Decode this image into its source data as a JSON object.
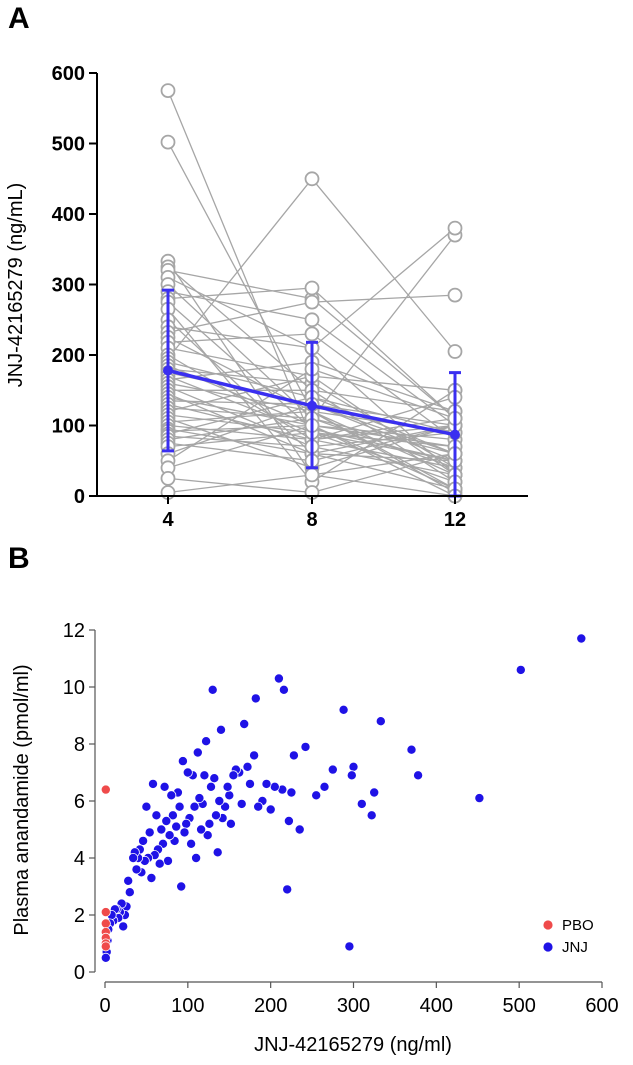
{
  "colors": {
    "subject_line": "#a6a6a6",
    "subject_marker": "#a6a6a6",
    "mean": "#3a2ff0",
    "jnj": "#1f12e6",
    "pbo": "#ef4a4a",
    "axis": "#000000"
  },
  "chart_data": [
    {
      "panel_label": "A",
      "type": "line",
      "description_note": "Individual subject trajectories (grey) with mean ± SD (blue)",
      "xlabel": "",
      "ylabel": "JNJ-42165279 (ng/mL)",
      "x": [
        4,
        8,
        12
      ],
      "x_tick_labels": [
        "4",
        "8",
        "12"
      ],
      "ylim": [
        0,
        600
      ],
      "y_ticks": [
        0,
        100,
        200,
        300,
        400,
        500,
        600
      ],
      "mean_series": {
        "values": [
          178,
          128,
          87
        ],
        "sd_upper": [
          292,
          218,
          175
        ],
        "sd_lower": [
          64,
          40,
          0
        ]
      },
      "subjects": [
        [
          575,
          80,
          40
        ],
        [
          502,
          120,
          10
        ],
        [
          333,
          30,
          60
        ],
        [
          325,
          150,
          120
        ],
        [
          320,
          280,
          110
        ],
        [
          310,
          210,
          30
        ],
        [
          300,
          110,
          370
        ],
        [
          290,
          250,
          100
        ],
        [
          280,
          295,
          110
        ],
        [
          275,
          95,
          50
        ],
        [
          265,
          20,
          150
        ],
        [
          250,
          60,
          100
        ],
        [
          240,
          210,
          380
        ],
        [
          232,
          275,
          285
        ],
        [
          225,
          120,
          90
        ],
        [
          218,
          230,
          80
        ],
        [
          210,
          170,
          150
        ],
        [
          200,
          80,
          140
        ],
        [
          195,
          450,
          205
        ],
        [
          190,
          140,
          60
        ],
        [
          185,
          100,
          70
        ],
        [
          180,
          160,
          40
        ],
        [
          175,
          130,
          100
        ],
        [
          170,
          90,
          50
        ],
        [
          165,
          190,
          120
        ],
        [
          160,
          120,
          30
        ],
        [
          155,
          70,
          90
        ],
        [
          150,
          150,
          20
        ],
        [
          145,
          60,
          10
        ],
        [
          140,
          100,
          80
        ],
        [
          135,
          130,
          60
        ],
        [
          130,
          80,
          100
        ],
        [
          125,
          110,
          40
        ],
        [
          120,
          170,
          30
        ],
        [
          115,
          90,
          70
        ],
        [
          110,
          40,
          100
        ],
        [
          105,
          120,
          5
        ],
        [
          100,
          80,
          110
        ],
        [
          95,
          60,
          50
        ],
        [
          92,
          100,
          0
        ],
        [
          88,
          140,
          90
        ],
        [
          85,
          70,
          30
        ],
        [
          80,
          110,
          60
        ],
        [
          75,
          50,
          100
        ],
        [
          70,
          90,
          20
        ],
        [
          60,
          130,
          50
        ],
        [
          50,
          180,
          110
        ],
        [
          40,
          100,
          10
        ],
        [
          25,
          5,
          60
        ],
        [
          5,
          30,
          0
        ]
      ]
    },
    {
      "panel_label": "B",
      "type": "scatter",
      "xlabel": "JNJ-42165279 (ng/ml)",
      "ylabel": "Plasma anandamide (pmol/ml)",
      "xlim": [
        0,
        600
      ],
      "ylim": [
        0,
        12
      ],
      "x_ticks": [
        0,
        100,
        200,
        300,
        400,
        500,
        600
      ],
      "y_ticks": [
        0,
        2,
        4,
        6,
        8,
        10,
        12
      ],
      "legend_position": "bottom-right",
      "series": [
        {
          "name": "PBO",
          "points": [
            [
              1,
              6.4
            ],
            [
              1,
              2.1
            ],
            [
              1,
              1.7
            ],
            [
              1,
              1.4
            ],
            [
              1,
              1.2
            ],
            [
              1,
              1.0
            ],
            [
              1,
              0.9
            ]
          ]
        },
        {
          "name": "JNJ",
          "points": [
            [
              575,
              11.7
            ],
            [
              502,
              10.6
            ],
            [
              452,
              6.1
            ],
            [
              378,
              6.9
            ],
            [
              370,
              7.8
            ],
            [
              333,
              8.8
            ],
            [
              325,
              6.3
            ],
            [
              322,
              5.5
            ],
            [
              310,
              5.9
            ],
            [
              300,
              7.2
            ],
            [
              298,
              6.9
            ],
            [
              295,
              0.9
            ],
            [
              288,
              9.2
            ],
            [
              275,
              7.1
            ],
            [
              265,
              6.5
            ],
            [
              255,
              6.2
            ],
            [
              242,
              7.9
            ],
            [
              235,
              5.0
            ],
            [
              228,
              7.6
            ],
            [
              225,
              6.3
            ],
            [
              222,
              5.3
            ],
            [
              220,
              2.9
            ],
            [
              216,
              9.9
            ],
            [
              214,
              6.4
            ],
            [
              210,
              10.3
            ],
            [
              205,
              6.5
            ],
            [
              200,
              5.7
            ],
            [
              195,
              6.6
            ],
            [
              190,
              6.0
            ],
            [
              185,
              5.8
            ],
            [
              182,
              9.6
            ],
            [
              180,
              7.6
            ],
            [
              175,
              6.6
            ],
            [
              172,
              7.2
            ],
            [
              168,
              8.7
            ],
            [
              165,
              5.9
            ],
            [
              162,
              7.0
            ],
            [
              158,
              7.1
            ],
            [
              155,
              6.9
            ],
            [
              152,
              5.2
            ],
            [
              150,
              6.2
            ],
            [
              148,
              6.5
            ],
            [
              145,
              5.8
            ],
            [
              142,
              5.4
            ],
            [
              140,
              8.5
            ],
            [
              138,
              6.0
            ],
            [
              136,
              4.2
            ],
            [
              134,
              5.5
            ],
            [
              132,
              6.8
            ],
            [
              130,
              9.9
            ],
            [
              128,
              6.5
            ],
            [
              126,
              5.2
            ],
            [
              124,
              4.8
            ],
            [
              122,
              8.1
            ],
            [
              120,
              6.9
            ],
            [
              118,
              5.9
            ],
            [
              116,
              5.0
            ],
            [
              114,
              6.1
            ],
            [
              112,
              7.7
            ],
            [
              110,
              4.0
            ],
            [
              108,
              5.8
            ],
            [
              106,
              6.9
            ],
            [
              104,
              4.5
            ],
            [
              102,
              5.4
            ],
            [
              100,
              7.0
            ],
            [
              98,
              5.2
            ],
            [
              96,
              4.9
            ],
            [
              94,
              7.4
            ],
            [
              92,
              3.0
            ],
            [
              90,
              5.8
            ],
            [
              88,
              6.3
            ],
            [
              86,
              5.1
            ],
            [
              84,
              4.6
            ],
            [
              82,
              5.5
            ],
            [
              80,
              6.2
            ],
            [
              78,
              4.8
            ],
            [
              76,
              3.9
            ],
            [
              74,
              5.3
            ],
            [
              72,
              6.5
            ],
            [
              70,
              4.5
            ],
            [
              68,
              5.0
            ],
            [
              66,
              3.8
            ],
            [
              64,
              4.3
            ],
            [
              62,
              5.5
            ],
            [
              60,
              4.1
            ],
            [
              58,
              6.6
            ],
            [
              56,
              3.3
            ],
            [
              54,
              4.9
            ],
            [
              52,
              4.0
            ],
            [
              50,
              5.8
            ],
            [
              48,
              3.9
            ],
            [
              46,
              4.6
            ],
            [
              44,
              3.5
            ],
            [
              42,
              4.3
            ],
            [
              40,
              4.0
            ],
            [
              38,
              3.6
            ],
            [
              36,
              4.2
            ],
            [
              34,
              4.0
            ],
            [
              30,
              2.8
            ],
            [
              28,
              3.2
            ],
            [
              26,
              2.3
            ],
            [
              24,
              2.0
            ],
            [
              22,
              1.6
            ],
            [
              20,
              2.4
            ],
            [
              18,
              2.1
            ],
            [
              16,
              1.9
            ],
            [
              14,
              2.2
            ],
            [
              12,
              2.2
            ],
            [
              10,
              1.8
            ],
            [
              8,
              2.0
            ],
            [
              6,
              1.7
            ],
            [
              4,
              1.5
            ],
            [
              3,
              1.1
            ],
            [
              2,
              0.7
            ],
            [
              1,
              0.5
            ]
          ]
        }
      ]
    }
  ]
}
